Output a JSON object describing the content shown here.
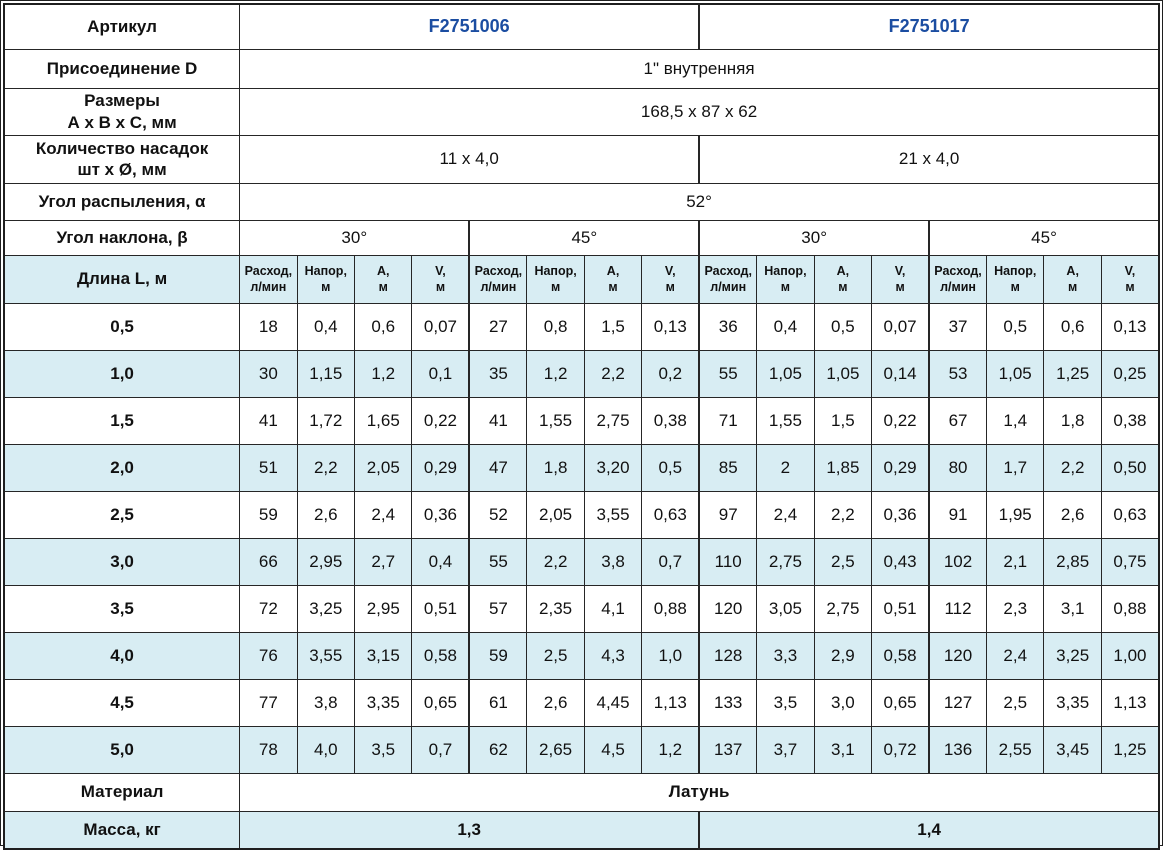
{
  "colors": {
    "article_link_blue": "#1b4da1",
    "row_highlight_blue": "#d8edf3",
    "grid_border": "#262626"
  },
  "table": {
    "article": {
      "label": "Артикул",
      "values": [
        "F2751006",
        "F2751017"
      ]
    },
    "connection": {
      "label": "Присоединение D",
      "value": "1\" внутренняя"
    },
    "dimensions": {
      "label": "Размеры\nА х В х С, мм",
      "value": "168,5 x 87 x 62"
    },
    "nozzles": {
      "label": "Количество насадок\nшт х Ø, мм",
      "values": [
        "11 x 4,0",
        "21 x 4,0"
      ]
    },
    "spray_angle": {
      "label": "Угол распыления, α",
      "value": "52°"
    },
    "tilt_angle": {
      "label": "Угол наклона, β",
      "values": [
        "30°",
        "45°",
        "30°",
        "45°"
      ]
    },
    "length_label": "Длина L, м",
    "unit_headers": [
      "Расход,\nл/мин",
      "Напор,\nм",
      "А,\nм",
      "V,\nм"
    ],
    "data_rows": [
      {
        "length": "0,5",
        "values": [
          "18",
          "0,4",
          "0,6",
          "0,07",
          "27",
          "0,8",
          "1,5",
          "0,13",
          "36",
          "0,4",
          "0,5",
          "0,07",
          "37",
          "0,5",
          "0,6",
          "0,13"
        ]
      },
      {
        "length": "1,0",
        "values": [
          "30",
          "1,15",
          "1,2",
          "0,1",
          "35",
          "1,2",
          "2,2",
          "0,2",
          "55",
          "1,05",
          "1,05",
          "0,14",
          "53",
          "1,05",
          "1,25",
          "0,25"
        ]
      },
      {
        "length": "1,5",
        "values": [
          "41",
          "1,72",
          "1,65",
          "0,22",
          "41",
          "1,55",
          "2,75",
          "0,38",
          "71",
          "1,55",
          "1,5",
          "0,22",
          "67",
          "1,4",
          "1,8",
          "0,38"
        ]
      },
      {
        "length": "2,0",
        "values": [
          "51",
          "2,2",
          "2,05",
          "0,29",
          "47",
          "1,8",
          "3,20",
          "0,5",
          "85",
          "2",
          "1,85",
          "0,29",
          "80",
          "1,7",
          "2,2",
          "0,50"
        ]
      },
      {
        "length": "2,5",
        "values": [
          "59",
          "2,6",
          "2,4",
          "0,36",
          "52",
          "2,05",
          "3,55",
          "0,63",
          "97",
          "2,4",
          "2,2",
          "0,36",
          "91",
          "1,95",
          "2,6",
          "0,63"
        ]
      },
      {
        "length": "3,0",
        "values": [
          "66",
          "2,95",
          "2,7",
          "0,4",
          "55",
          "2,2",
          "3,8",
          "0,7",
          "110",
          "2,75",
          "2,5",
          "0,43",
          "102",
          "2,1",
          "2,85",
          "0,75"
        ]
      },
      {
        "length": "3,5",
        "values": [
          "72",
          "3,25",
          "2,95",
          "0,51",
          "57",
          "2,35",
          "4,1",
          "0,88",
          "120",
          "3,05",
          "2,75",
          "0,51",
          "112",
          "2,3",
          "3,1",
          "0,88"
        ]
      },
      {
        "length": "4,0",
        "values": [
          "76",
          "3,55",
          "3,15",
          "0,58",
          "59",
          "2,5",
          "4,3",
          "1,0",
          "128",
          "3,3",
          "2,9",
          "0,58",
          "120",
          "2,4",
          "3,25",
          "1,00"
        ]
      },
      {
        "length": "4,5",
        "values": [
          "77",
          "3,8",
          "3,35",
          "0,65",
          "61",
          "2,6",
          "4,45",
          "1,13",
          "133",
          "3,5",
          "3,0",
          "0,65",
          "127",
          "2,5",
          "3,35",
          "1,13"
        ]
      },
      {
        "length": "5,0",
        "values": [
          "78",
          "4,0",
          "3,5",
          "0,7",
          "62",
          "2,65",
          "4,5",
          "1,2",
          "137",
          "3,7",
          "3,1",
          "0,72",
          "136",
          "2,55",
          "3,45",
          "1,25"
        ]
      }
    ],
    "material": {
      "label": "Материал",
      "value": "Латунь"
    },
    "mass": {
      "label": "Масса, кг",
      "values": [
        "1,3",
        "1,4"
      ]
    }
  }
}
